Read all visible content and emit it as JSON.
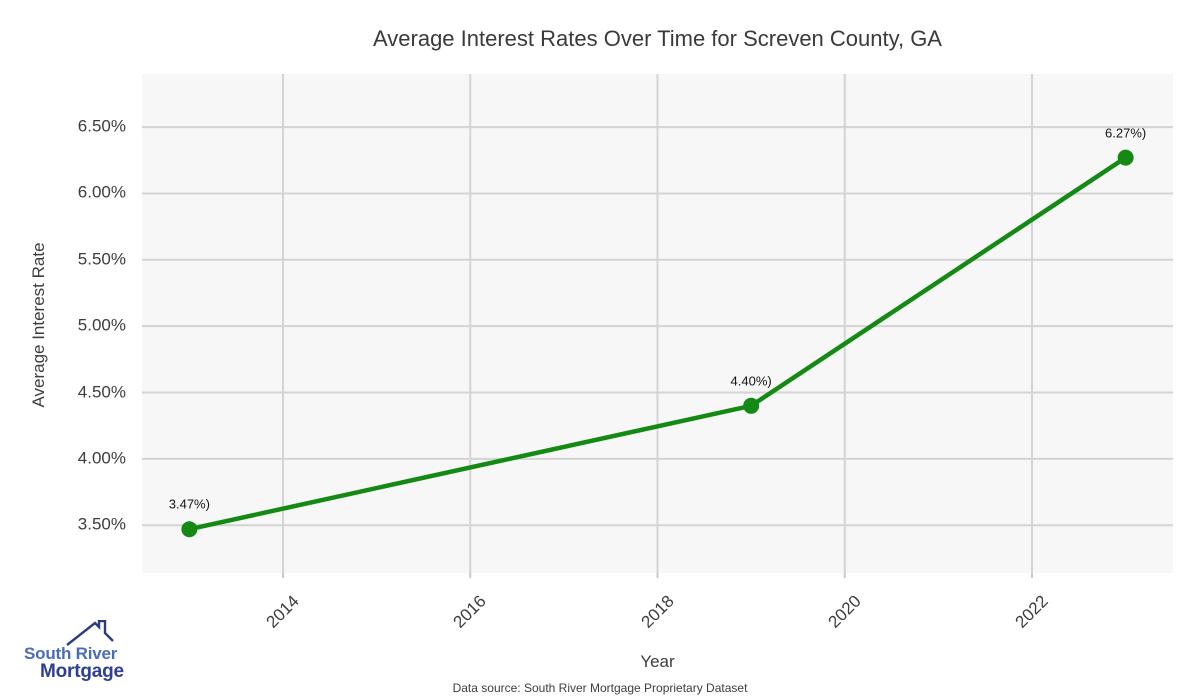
{
  "chart_data": {
    "type": "line",
    "title": "Average Interest Rates Over Time for Screven County, GA",
    "xlabel": "Year",
    "ylabel": "Average Interest Rate",
    "x": [
      2013,
      2019,
      2023
    ],
    "values": [
      3.47,
      4.4,
      6.27
    ],
    "point_labels": [
      "3.47%)",
      "4.40%)",
      "6.27%)"
    ],
    "x_ticks": [
      {
        "label": "2014",
        "value": 2014
      },
      {
        "label": "2016",
        "value": 2016
      },
      {
        "label": "2018",
        "value": 2018
      },
      {
        "label": "2020",
        "value": 2020
      },
      {
        "label": "2022",
        "value": 2022
      }
    ],
    "y_ticks": [
      {
        "label": "6.50%",
        "value": 6.5
      },
      {
        "label": "6.00%",
        "value": 6.0
      },
      {
        "label": "5.50%",
        "value": 5.5
      },
      {
        "label": "5.00%",
        "value": 5.0
      },
      {
        "label": "4.50%",
        "value": 4.5
      },
      {
        "label": "4.00%",
        "value": 4.0
      },
      {
        "label": "3.50%",
        "value": 3.5
      }
    ],
    "xlim": [
      2012.494,
      2023.506
    ],
    "ylim": [
      3.14,
      6.9
    ],
    "grid": true,
    "legend": "none",
    "line_color": "#148a14",
    "marker_color": "#148a14",
    "plot_bg_color": "#f7f7f7",
    "gridline_color": "#d4d4d4"
  },
  "footer": {
    "text": "Data source: South River Mortgage Proprietary Dataset"
  },
  "logo": {
    "line1": "South River",
    "line2": "Mortgage",
    "line1_color": "#4a6db8",
    "line2_color": "#2f3f96",
    "icon_color": "#2c3a85"
  }
}
